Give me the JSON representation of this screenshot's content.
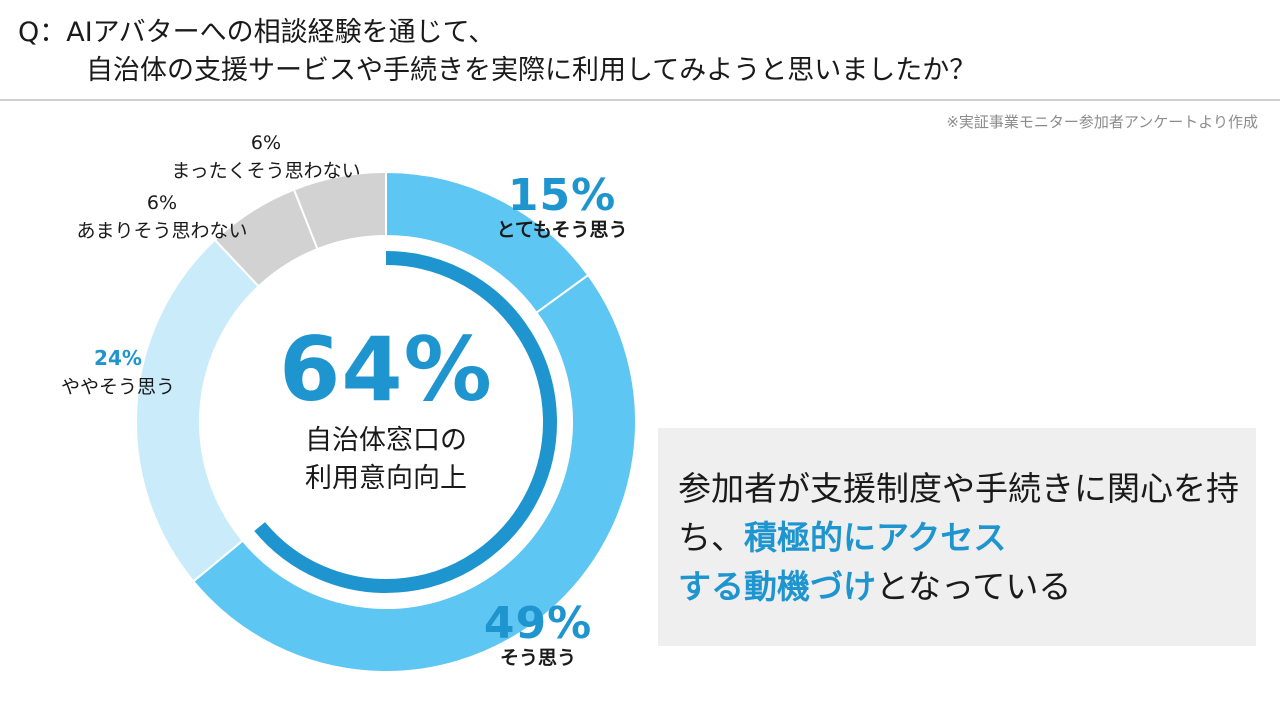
{
  "question": {
    "line1": "Q：AIアバターへの相談経験を通じて、",
    "line2": "自治体の支援サービスや手続きを実際に利用してみようと思いましたか？"
  },
  "source": "※実証事業モニター参加者アンケートより作成",
  "center": {
    "big": "64%",
    "line1": "自治体窓口の",
    "line2": "利用意向向上"
  },
  "callout": {
    "part1": "参加者が支援制度や手続きに関心を持ち、",
    "highlight1": "積極的にアクセス",
    "highlight2": "する動機づけ",
    "part2": "となっている"
  },
  "labels": [
    {
      "pct": "15%",
      "cat": "とてもそう思う"
    },
    {
      "pct": "49%",
      "cat": "そう思う"
    },
    {
      "pct": "24%",
      "cat": "ややそう思う"
    },
    {
      "pct": "6%",
      "cat": "あまりそう思わない"
    },
    {
      "pct": "6%",
      "cat": "まったくそう思わない"
    }
  ],
  "chart_data": {
    "type": "pie",
    "style": "donut",
    "categories": [
      "とてもそう思う",
      "そう思う",
      "ややそう思う",
      "あまりそう思わない",
      "まったくそう思わない"
    ],
    "values": [
      15,
      49,
      24,
      6,
      6
    ],
    "colors": [
      "#5ec6f2",
      "#5ec6f2",
      "#c9ebfa",
      "#d2d2d2",
      "#d2d2d2"
    ],
    "positive_share": 64,
    "positive_color": "#1e95cf"
  }
}
